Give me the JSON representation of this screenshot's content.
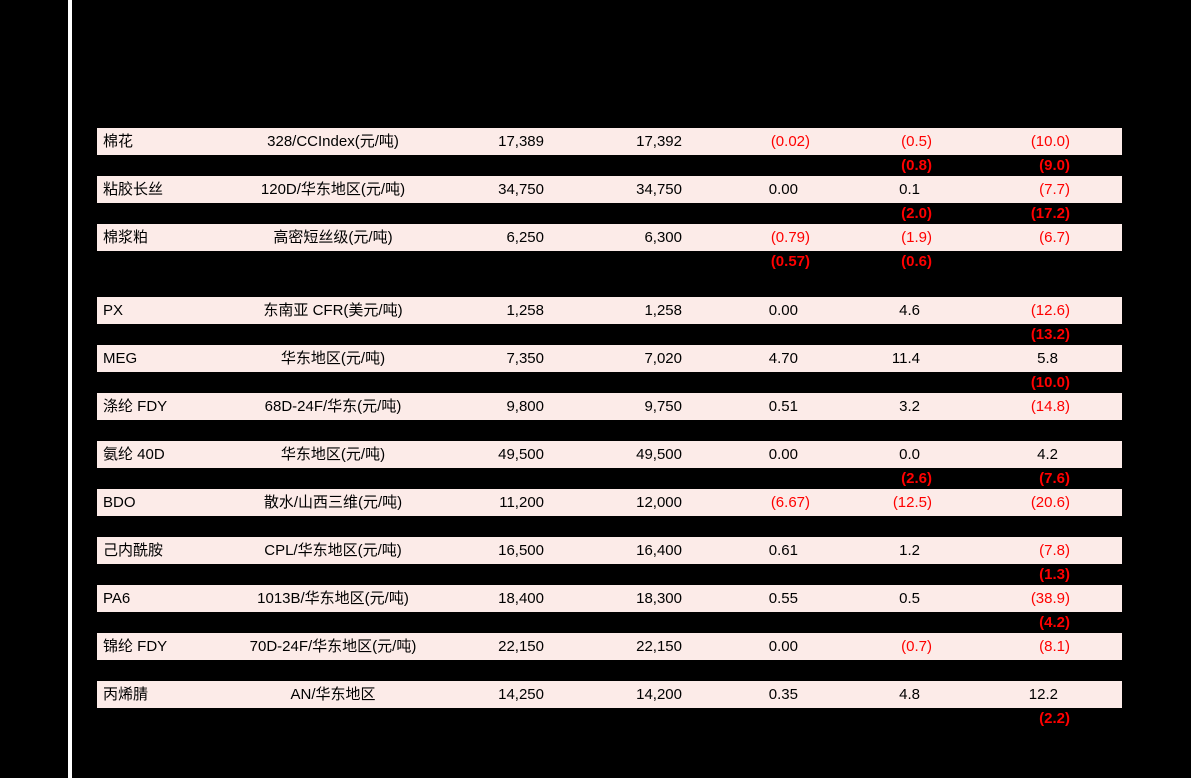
{
  "page": {
    "background_color": "#000000",
    "divider_color": "#ffffff"
  },
  "table": {
    "row_background_color": "#fcebe8",
    "text_color": "#000000",
    "negative_color": "#ff0000",
    "negative_format": "parentheses",
    "section_break_after_row_index": 2,
    "rows": [
      {
        "name": "棉花",
        "spec": "328/CCIndex(元/吨)",
        "v1": "17,389",
        "v2": "17,392",
        "d1": "(0.02)",
        "d2": "(0.5)",
        "d3": "(10.0)",
        "sub": {
          "d1": "",
          "d2": "(0.8)",
          "d3": "(9.0)"
        }
      },
      {
        "name": "粘胶长丝",
        "spec": "120D/华东地区(元/吨)",
        "v1": "34,750",
        "v2": "34,750",
        "d1": "0.00",
        "d2": "0.1",
        "d3": "(7.7)",
        "sub": {
          "d1": "",
          "d2": "(2.0)",
          "d3": "(17.2)"
        }
      },
      {
        "name": "棉浆粕",
        "spec": "高密短丝级(元/吨)",
        "v1": "6,250",
        "v2": "6,300",
        "d1": "(0.79)",
        "d2": "(1.9)",
        "d3": "(6.7)",
        "sub": {
          "d1": "(0.57)",
          "d2": "(0.6)",
          "d3": ""
        }
      },
      {
        "name": "PX",
        "spec": "东南亚 CFR(美元/吨)",
        "v1": "1,258",
        "v2": "1,258",
        "d1": "0.00",
        "d2": "4.6",
        "d3": "(12.6)",
        "sub": {
          "d1": "",
          "d2": "",
          "d3": "(13.2)"
        }
      },
      {
        "name": "MEG",
        "spec": "华东地区(元/吨)",
        "v1": "7,350",
        "v2": "7,020",
        "d1": "4.70",
        "d2": "11.4",
        "d3": "5.8",
        "sub": {
          "d1": "",
          "d2": "",
          "d3": "(10.0)"
        }
      },
      {
        "name": "涤纶 FDY",
        "spec": "68D-24F/华东(元/吨)",
        "v1": "9,800",
        "v2": "9,750",
        "d1": "0.51",
        "d2": "3.2",
        "d3": "(14.8)",
        "sub": {
          "d1": "",
          "d2": "",
          "d3": ""
        }
      },
      {
        "name": "氨纶 40D",
        "spec": "华东地区(元/吨)",
        "v1": "49,500",
        "v2": "49,500",
        "d1": "0.00",
        "d2": "0.0",
        "d3": "4.2",
        "sub": {
          "d1": "",
          "d2": "(2.6)",
          "d3": "(7.6)"
        }
      },
      {
        "name": "BDO",
        "spec": "散水/山西三维(元/吨)",
        "v1": "11,200",
        "v2": "12,000",
        "d1": "(6.67)",
        "d2": "(12.5)",
        "d3": "(20.6)",
        "sub": {
          "d1": "",
          "d2": "",
          "d3": ""
        }
      },
      {
        "name": "己内酰胺",
        "spec": "CPL/华东地区(元/吨)",
        "v1": "16,500",
        "v2": "16,400",
        "d1": "0.61",
        "d2": "1.2",
        "d3": "(7.8)",
        "sub": {
          "d1": "",
          "d2": "",
          "d3": "(1.3)"
        }
      },
      {
        "name": "PA6",
        "spec": "1013B/华东地区(元/吨)",
        "v1": "18,400",
        "v2": "18,300",
        "d1": "0.55",
        "d2": "0.5",
        "d3": "(38.9)",
        "sub": {
          "d1": "",
          "d2": "",
          "d3": "(4.2)"
        }
      },
      {
        "name": "锦纶 FDY",
        "spec": "70D-24F/华东地区(元/吨)",
        "v1": "22,150",
        "v2": "22,150",
        "d1": "0.00",
        "d2": "(0.7)",
        "d3": "(8.1)",
        "sub": {
          "d1": "",
          "d2": "",
          "d3": ""
        }
      },
      {
        "name": "丙烯腈",
        "spec": "AN/华东地区",
        "v1": "14,250",
        "v2": "14,200",
        "d1": "0.35",
        "d2": "4.8",
        "d3": "12.2",
        "sub": {
          "d1": "",
          "d2": "",
          "d3": "(2.2)"
        }
      }
    ]
  }
}
